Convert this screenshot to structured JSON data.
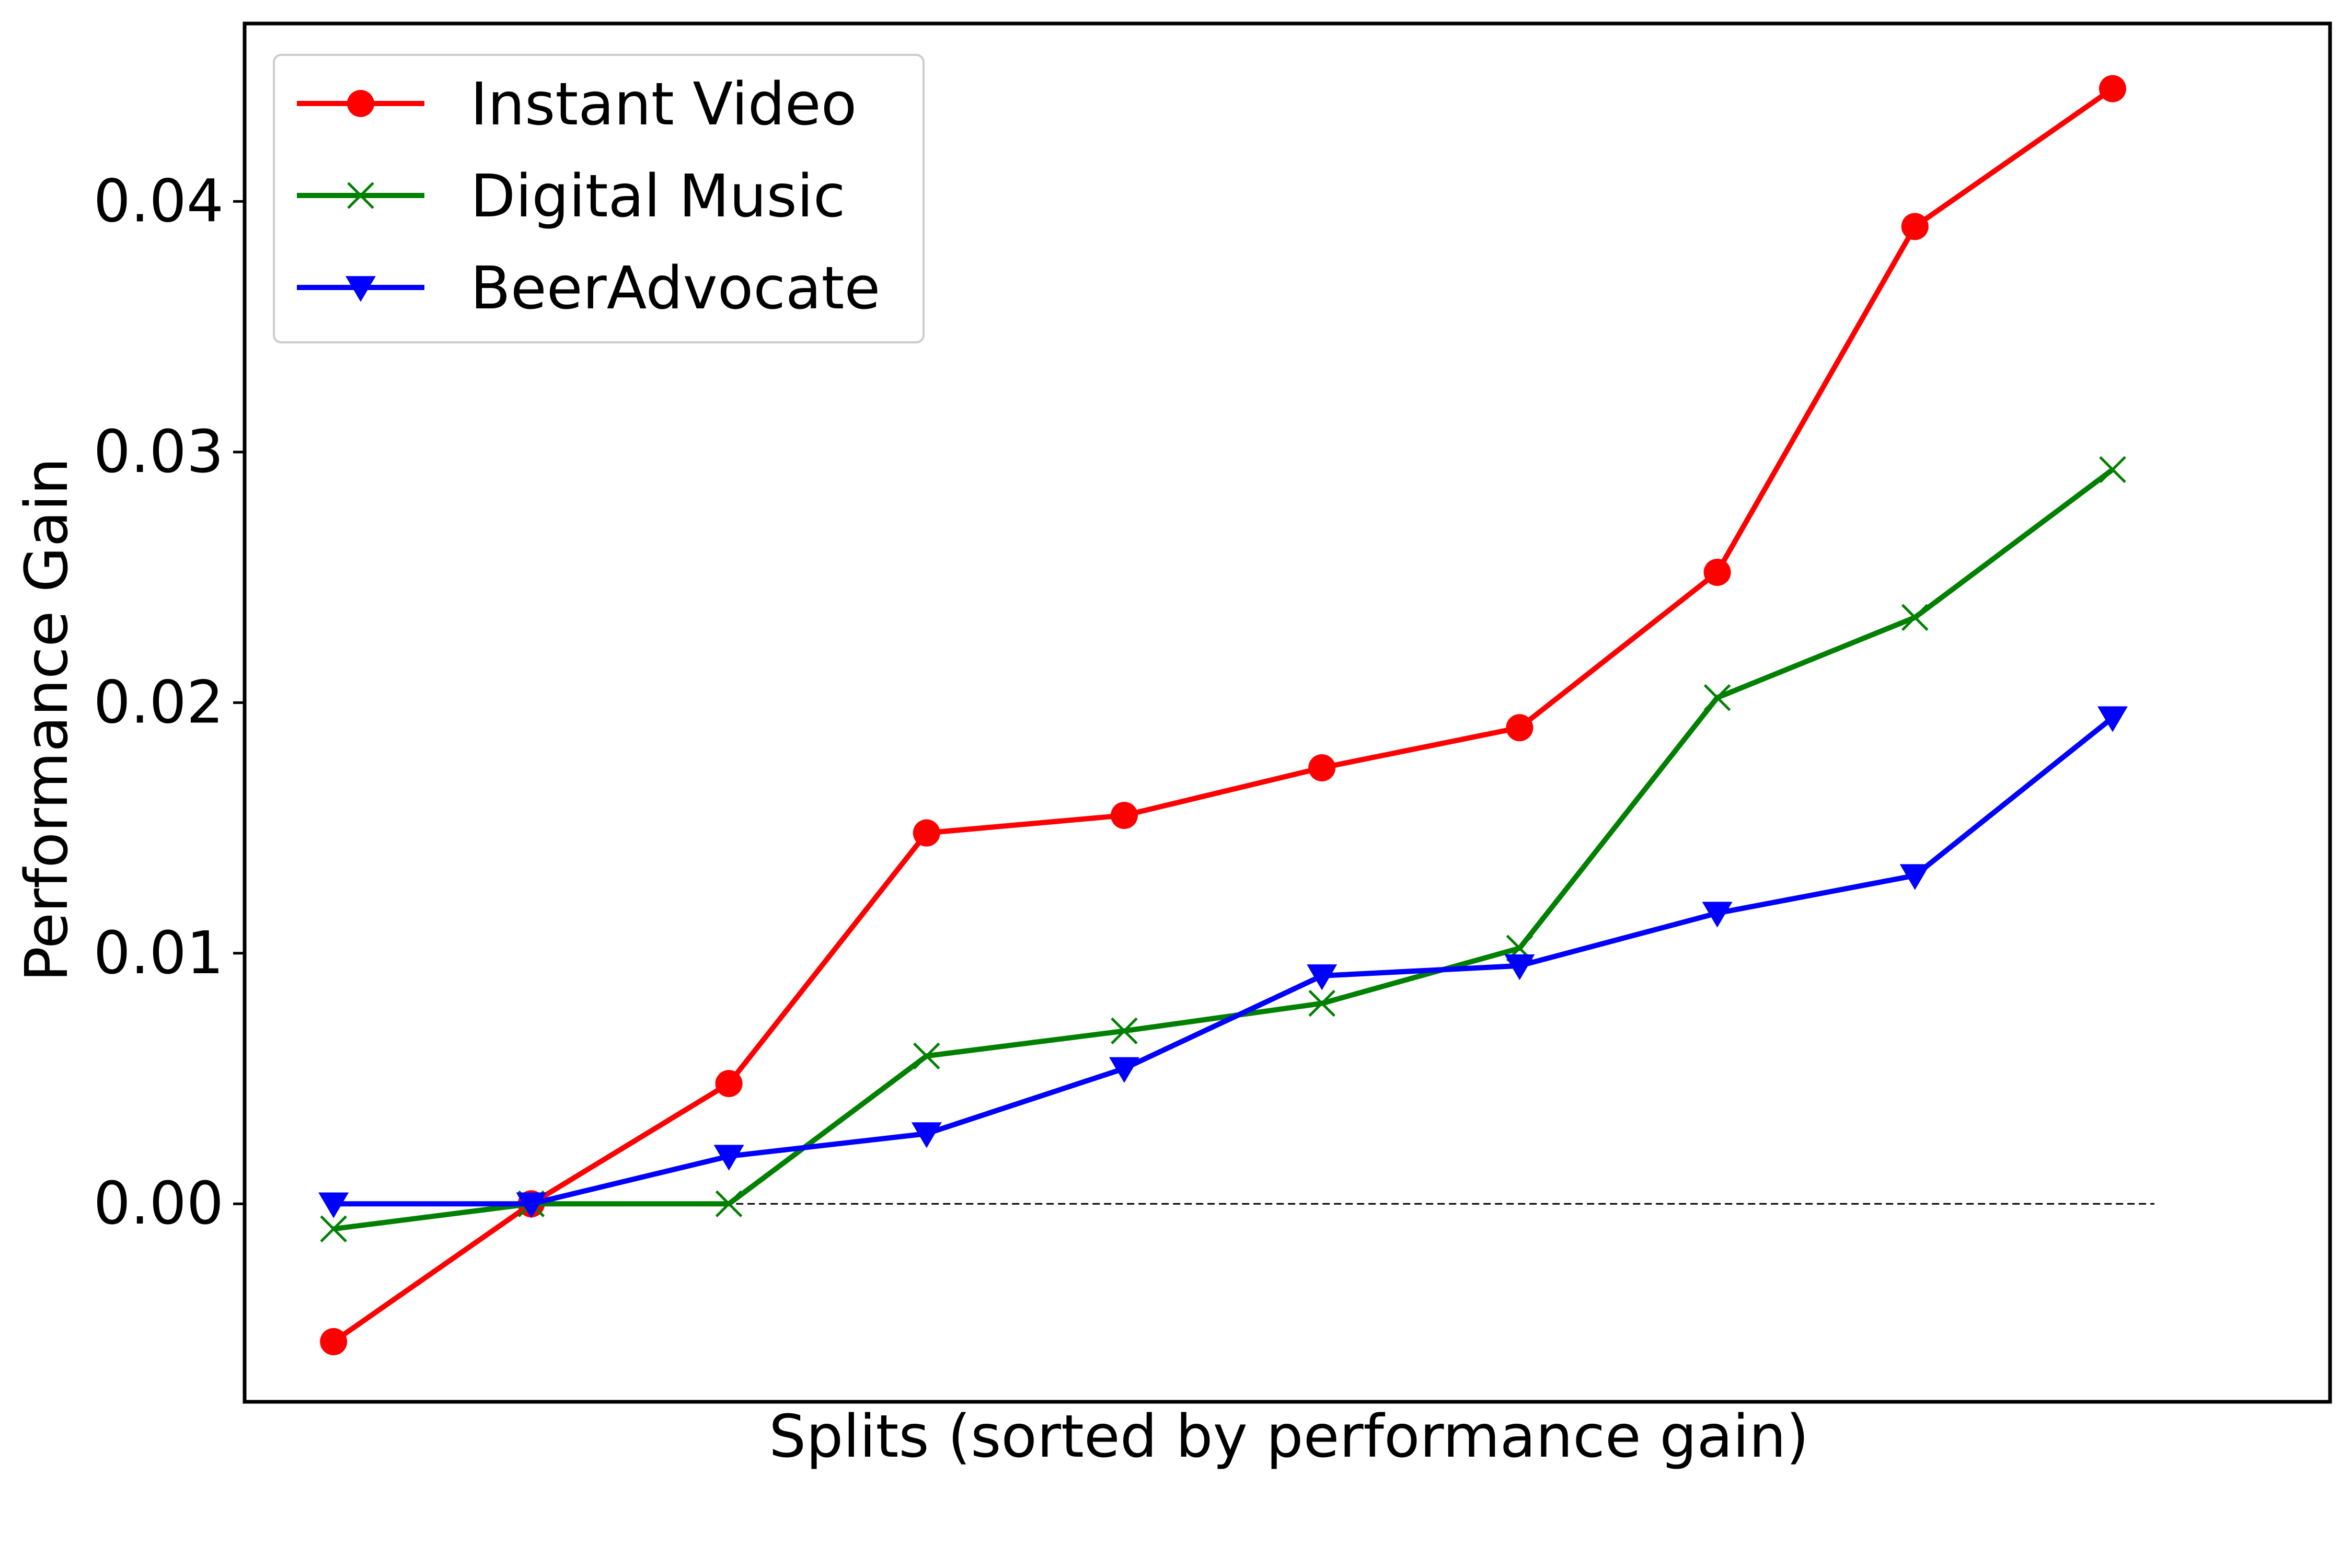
{
  "chart_data": {
    "type": "line",
    "title": "",
    "xlabel": "Splits (sorted by performance gain)",
    "ylabel": "Performance Gain",
    "x": [
      1,
      2,
      3,
      4,
      5,
      6,
      7,
      8,
      9,
      10
    ],
    "xlim": [
      0.55,
      11.1
    ],
    "ylim": [
      -0.0079,
      0.0471
    ],
    "yticks": [
      0.0,
      0.01,
      0.02,
      0.03,
      0.04
    ],
    "ytick_labels": [
      "0.00",
      "0.01",
      "0.02",
      "0.03",
      "0.04"
    ],
    "x_ticks_shown": false,
    "grid": false,
    "legend_position": "top-left",
    "reference_line": {
      "y": 0,
      "style": "dashed",
      "color": "#000000"
    },
    "series": [
      {
        "name": "Instant Video",
        "color": "#ff0000",
        "marker": "circle",
        "values": [
          -0.0055,
          0.0,
          0.0048,
          0.0148,
          0.0155,
          0.0174,
          0.019,
          0.0252,
          0.039,
          0.0445
        ]
      },
      {
        "name": "Digital Music",
        "color": "#008000",
        "marker": "x",
        "values": [
          -0.001,
          0.0,
          0.0,
          0.0059,
          0.0069,
          0.008,
          0.0102,
          0.0202,
          0.0234,
          0.0293
        ]
      },
      {
        "name": "BeerAdvocate",
        "color": "#0000ff",
        "marker": "triangle-down",
        "values": [
          0.0,
          0.0,
          0.0019,
          0.0028,
          0.0054,
          0.0091,
          0.0095,
          0.0116,
          0.0131,
          0.0194
        ]
      }
    ]
  }
}
